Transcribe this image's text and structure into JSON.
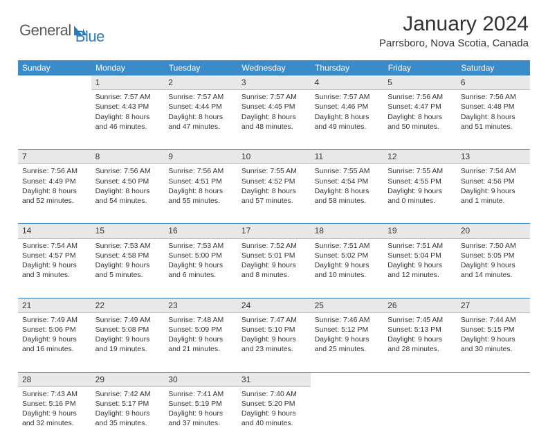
{
  "logo": {
    "text1": "General",
    "text2": "Blue"
  },
  "title": "January 2024",
  "location": "Parrsboro, Nova Scotia, Canada",
  "weekdays": [
    "Sunday",
    "Monday",
    "Tuesday",
    "Wednesday",
    "Thursday",
    "Friday",
    "Saturday"
  ],
  "colors": {
    "header_bg": "#3b8bc9",
    "daynum_bg": "#e8e8e8",
    "rule": "#2b7bbf",
    "text": "#333333"
  },
  "weeks": [
    [
      null,
      {
        "n": "1",
        "sr": "Sunrise: 7:57 AM",
        "ss": "Sunset: 4:43 PM",
        "d1": "Daylight: 8 hours",
        "d2": "and 46 minutes."
      },
      {
        "n": "2",
        "sr": "Sunrise: 7:57 AM",
        "ss": "Sunset: 4:44 PM",
        "d1": "Daylight: 8 hours",
        "d2": "and 47 minutes."
      },
      {
        "n": "3",
        "sr": "Sunrise: 7:57 AM",
        "ss": "Sunset: 4:45 PM",
        "d1": "Daylight: 8 hours",
        "d2": "and 48 minutes."
      },
      {
        "n": "4",
        "sr": "Sunrise: 7:57 AM",
        "ss": "Sunset: 4:46 PM",
        "d1": "Daylight: 8 hours",
        "d2": "and 49 minutes."
      },
      {
        "n": "5",
        "sr": "Sunrise: 7:56 AM",
        "ss": "Sunset: 4:47 PM",
        "d1": "Daylight: 8 hours",
        "d2": "and 50 minutes."
      },
      {
        "n": "6",
        "sr": "Sunrise: 7:56 AM",
        "ss": "Sunset: 4:48 PM",
        "d1": "Daylight: 8 hours",
        "d2": "and 51 minutes."
      }
    ],
    [
      {
        "n": "7",
        "sr": "Sunrise: 7:56 AM",
        "ss": "Sunset: 4:49 PM",
        "d1": "Daylight: 8 hours",
        "d2": "and 52 minutes."
      },
      {
        "n": "8",
        "sr": "Sunrise: 7:56 AM",
        "ss": "Sunset: 4:50 PM",
        "d1": "Daylight: 8 hours",
        "d2": "and 54 minutes."
      },
      {
        "n": "9",
        "sr": "Sunrise: 7:56 AM",
        "ss": "Sunset: 4:51 PM",
        "d1": "Daylight: 8 hours",
        "d2": "and 55 minutes."
      },
      {
        "n": "10",
        "sr": "Sunrise: 7:55 AM",
        "ss": "Sunset: 4:52 PM",
        "d1": "Daylight: 8 hours",
        "d2": "and 57 minutes."
      },
      {
        "n": "11",
        "sr": "Sunrise: 7:55 AM",
        "ss": "Sunset: 4:54 PM",
        "d1": "Daylight: 8 hours",
        "d2": "and 58 minutes."
      },
      {
        "n": "12",
        "sr": "Sunrise: 7:55 AM",
        "ss": "Sunset: 4:55 PM",
        "d1": "Daylight: 9 hours",
        "d2": "and 0 minutes."
      },
      {
        "n": "13",
        "sr": "Sunrise: 7:54 AM",
        "ss": "Sunset: 4:56 PM",
        "d1": "Daylight: 9 hours",
        "d2": "and 1 minute."
      }
    ],
    [
      {
        "n": "14",
        "sr": "Sunrise: 7:54 AM",
        "ss": "Sunset: 4:57 PM",
        "d1": "Daylight: 9 hours",
        "d2": "and 3 minutes."
      },
      {
        "n": "15",
        "sr": "Sunrise: 7:53 AM",
        "ss": "Sunset: 4:58 PM",
        "d1": "Daylight: 9 hours",
        "d2": "and 5 minutes."
      },
      {
        "n": "16",
        "sr": "Sunrise: 7:53 AM",
        "ss": "Sunset: 5:00 PM",
        "d1": "Daylight: 9 hours",
        "d2": "and 6 minutes."
      },
      {
        "n": "17",
        "sr": "Sunrise: 7:52 AM",
        "ss": "Sunset: 5:01 PM",
        "d1": "Daylight: 9 hours",
        "d2": "and 8 minutes."
      },
      {
        "n": "18",
        "sr": "Sunrise: 7:51 AM",
        "ss": "Sunset: 5:02 PM",
        "d1": "Daylight: 9 hours",
        "d2": "and 10 minutes."
      },
      {
        "n": "19",
        "sr": "Sunrise: 7:51 AM",
        "ss": "Sunset: 5:04 PM",
        "d1": "Daylight: 9 hours",
        "d2": "and 12 minutes."
      },
      {
        "n": "20",
        "sr": "Sunrise: 7:50 AM",
        "ss": "Sunset: 5:05 PM",
        "d1": "Daylight: 9 hours",
        "d2": "and 14 minutes."
      }
    ],
    [
      {
        "n": "21",
        "sr": "Sunrise: 7:49 AM",
        "ss": "Sunset: 5:06 PM",
        "d1": "Daylight: 9 hours",
        "d2": "and 16 minutes."
      },
      {
        "n": "22",
        "sr": "Sunrise: 7:49 AM",
        "ss": "Sunset: 5:08 PM",
        "d1": "Daylight: 9 hours",
        "d2": "and 19 minutes."
      },
      {
        "n": "23",
        "sr": "Sunrise: 7:48 AM",
        "ss": "Sunset: 5:09 PM",
        "d1": "Daylight: 9 hours",
        "d2": "and 21 minutes."
      },
      {
        "n": "24",
        "sr": "Sunrise: 7:47 AM",
        "ss": "Sunset: 5:10 PM",
        "d1": "Daylight: 9 hours",
        "d2": "and 23 minutes."
      },
      {
        "n": "25",
        "sr": "Sunrise: 7:46 AM",
        "ss": "Sunset: 5:12 PM",
        "d1": "Daylight: 9 hours",
        "d2": "and 25 minutes."
      },
      {
        "n": "26",
        "sr": "Sunrise: 7:45 AM",
        "ss": "Sunset: 5:13 PM",
        "d1": "Daylight: 9 hours",
        "d2": "and 28 minutes."
      },
      {
        "n": "27",
        "sr": "Sunrise: 7:44 AM",
        "ss": "Sunset: 5:15 PM",
        "d1": "Daylight: 9 hours",
        "d2": "and 30 minutes."
      }
    ],
    [
      {
        "n": "28",
        "sr": "Sunrise: 7:43 AM",
        "ss": "Sunset: 5:16 PM",
        "d1": "Daylight: 9 hours",
        "d2": "and 32 minutes."
      },
      {
        "n": "29",
        "sr": "Sunrise: 7:42 AM",
        "ss": "Sunset: 5:17 PM",
        "d1": "Daylight: 9 hours",
        "d2": "and 35 minutes."
      },
      {
        "n": "30",
        "sr": "Sunrise: 7:41 AM",
        "ss": "Sunset: 5:19 PM",
        "d1": "Daylight: 9 hours",
        "d2": "and 37 minutes."
      },
      {
        "n": "31",
        "sr": "Sunrise: 7:40 AM",
        "ss": "Sunset: 5:20 PM",
        "d1": "Daylight: 9 hours",
        "d2": "and 40 minutes."
      },
      null,
      null,
      null
    ]
  ]
}
